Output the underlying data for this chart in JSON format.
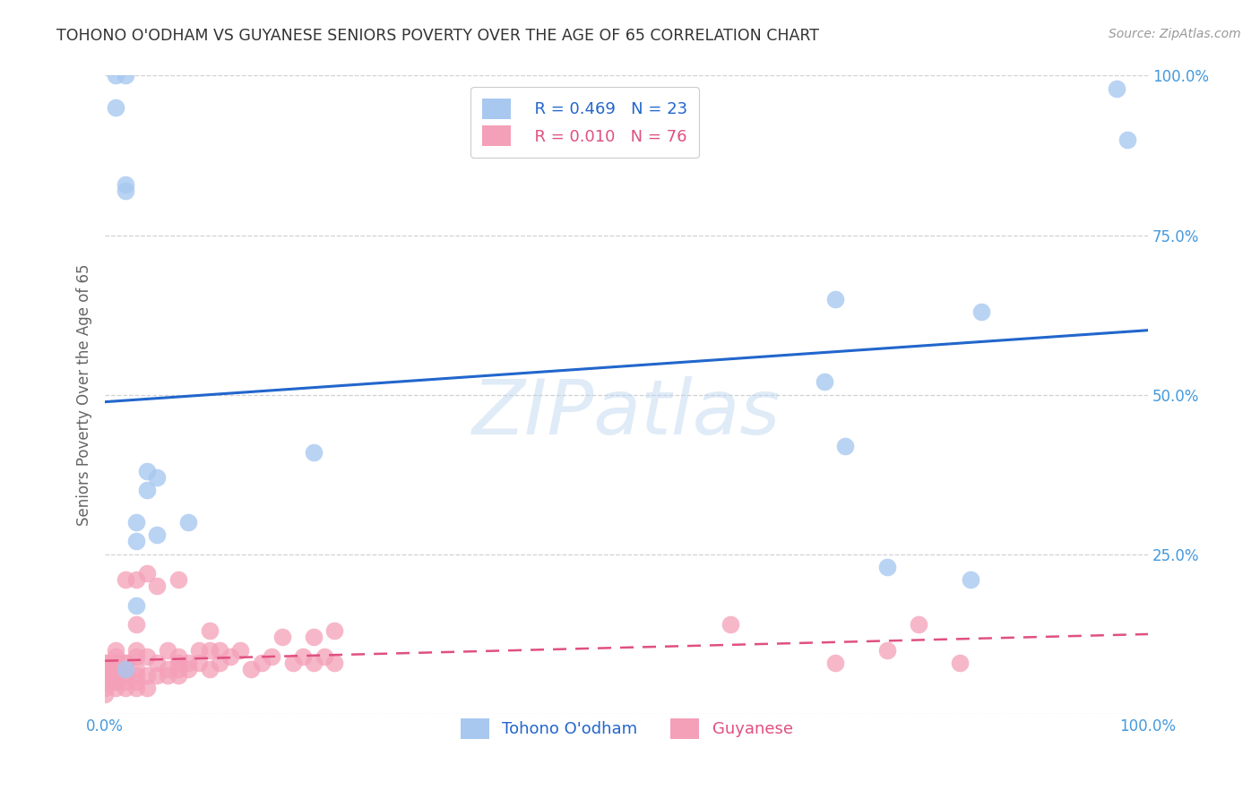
{
  "title": "TOHONO O'ODHAM VS GUYANESE SENIORS POVERTY OVER THE AGE OF 65 CORRELATION CHART",
  "source": "Source: ZipAtlas.com",
  "ylabel": "Seniors Poverty Over the Age of 65",
  "background_color": "#ffffff",
  "legend_labels": [
    "Tohono O'odham",
    "Guyanese"
  ],
  "blue_R": "R = 0.469",
  "blue_N": "N = 23",
  "pink_R": "R = 0.010",
  "pink_N": "N = 76",
  "tohono_x": [
    0.02,
    0.04,
    0.04,
    0.05,
    0.02,
    0.03,
    0.03,
    0.05,
    0.2,
    0.69,
    0.7,
    0.71,
    0.75,
    0.83,
    0.84,
    0.03,
    0.08,
    0.02,
    0.01,
    0.01,
    0.02,
    0.97,
    0.98
  ],
  "tohono_y": [
    0.83,
    0.35,
    0.38,
    0.37,
    0.82,
    0.3,
    0.27,
    0.28,
    0.41,
    0.52,
    0.65,
    0.42,
    0.23,
    0.21,
    0.63,
    0.17,
    0.3,
    1.0,
    0.95,
    1.0,
    0.07,
    0.98,
    0.9
  ],
  "guyanese_x": [
    0.0,
    0.0,
    0.0,
    0.0,
    0.0,
    0.0,
    0.0,
    0.0,
    0.0,
    0.01,
    0.01,
    0.01,
    0.01,
    0.01,
    0.01,
    0.01,
    0.01,
    0.01,
    0.01,
    0.02,
    0.02,
    0.02,
    0.02,
    0.02,
    0.02,
    0.02,
    0.03,
    0.03,
    0.03,
    0.03,
    0.03,
    0.03,
    0.03,
    0.03,
    0.04,
    0.04,
    0.04,
    0.04,
    0.05,
    0.05,
    0.05,
    0.06,
    0.06,
    0.06,
    0.07,
    0.07,
    0.07,
    0.07,
    0.07,
    0.08,
    0.08,
    0.09,
    0.09,
    0.1,
    0.1,
    0.1,
    0.11,
    0.11,
    0.12,
    0.13,
    0.14,
    0.15,
    0.16,
    0.17,
    0.18,
    0.19,
    0.2,
    0.2,
    0.21,
    0.22,
    0.22,
    0.6,
    0.7,
    0.75,
    0.78,
    0.82
  ],
  "guyanese_y": [
    0.03,
    0.04,
    0.05,
    0.06,
    0.06,
    0.07,
    0.07,
    0.08,
    0.08,
    0.04,
    0.05,
    0.05,
    0.06,
    0.07,
    0.07,
    0.08,
    0.08,
    0.09,
    0.1,
    0.04,
    0.05,
    0.06,
    0.07,
    0.08,
    0.08,
    0.21,
    0.04,
    0.05,
    0.06,
    0.07,
    0.09,
    0.1,
    0.14,
    0.21,
    0.04,
    0.06,
    0.09,
    0.22,
    0.06,
    0.08,
    0.2,
    0.06,
    0.07,
    0.1,
    0.06,
    0.07,
    0.08,
    0.09,
    0.21,
    0.07,
    0.08,
    0.08,
    0.1,
    0.07,
    0.1,
    0.13,
    0.08,
    0.1,
    0.09,
    0.1,
    0.07,
    0.08,
    0.09,
    0.12,
    0.08,
    0.09,
    0.08,
    0.12,
    0.09,
    0.08,
    0.13,
    0.14,
    0.08,
    0.1,
    0.14,
    0.08
  ],
  "tohono_color": "#a8c8f0",
  "guyanese_color": "#f4a0b8",
  "tohono_line_color": "#2266cc",
  "guyanese_line_color": "#e05080",
  "axis_tick_color": "#4499dd",
  "grid_color": "#cccccc",
  "title_color": "#333333",
  "xlim": [
    0,
    1
  ],
  "ylim": [
    0,
    1
  ],
  "xtick_positions": [
    0.0,
    1.0
  ],
  "xtick_labels": [
    "0.0%",
    "100.0%"
  ],
  "ytick_positions": [
    0.0,
    0.25,
    0.5,
    0.75,
    1.0
  ],
  "ytick_labels": [
    "",
    "25.0%",
    "50.0%",
    "75.0%",
    "100.0%"
  ]
}
